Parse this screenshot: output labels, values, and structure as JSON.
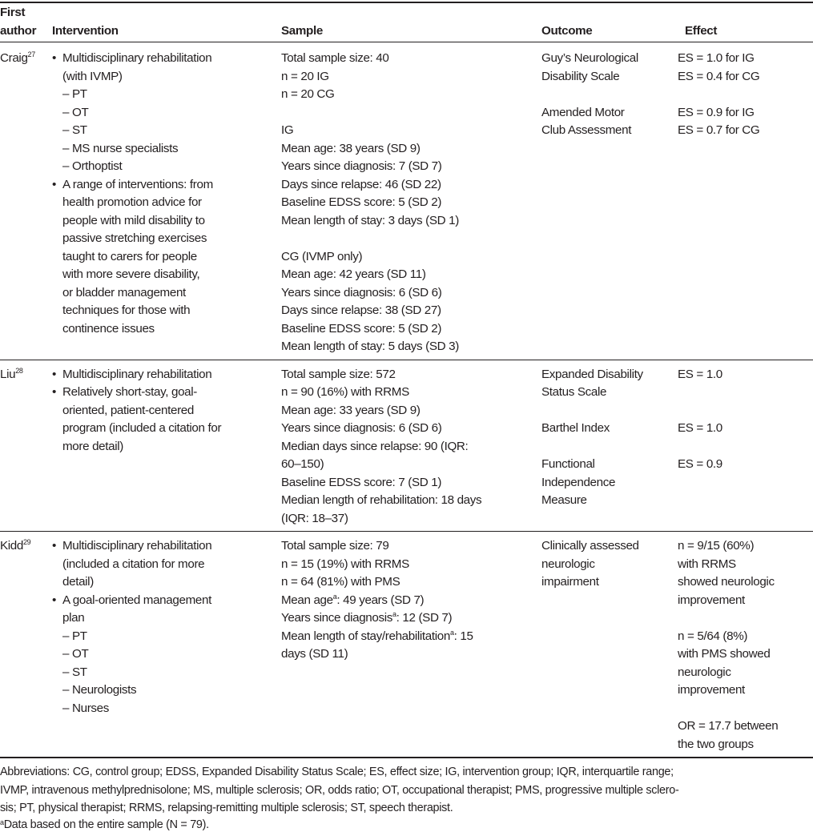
{
  "header": {
    "author_line1": "First",
    "author_line2": "author",
    "intervention": "Intervention",
    "sample": "Sample",
    "outcome": "Outcome",
    "effect": "Effect"
  },
  "rows": [
    {
      "author": "Craig",
      "ref": "27",
      "intervention": [
        {
          "type": "bullet",
          "text": "Multidisciplinary rehabilitation"
        },
        {
          "type": "cont",
          "text": "(with IVMP)"
        },
        {
          "type": "dash",
          "text": "PT"
        },
        {
          "type": "dash",
          "text": "OT"
        },
        {
          "type": "dash",
          "text": "ST"
        },
        {
          "type": "dash",
          "text": "MS nurse specialists"
        },
        {
          "type": "dash",
          "text": "Orthoptist"
        },
        {
          "type": "bullet",
          "text": "A range of interventions: from"
        },
        {
          "type": "cont",
          "text": "health promotion advice for"
        },
        {
          "type": "cont",
          "text": "people with mild disability to"
        },
        {
          "type": "cont",
          "text": "passive stretching exercises"
        },
        {
          "type": "cont",
          "text": "taught to carers for people"
        },
        {
          "type": "cont",
          "text": "with more severe disability,"
        },
        {
          "type": "cont",
          "text": "or bladder management"
        },
        {
          "type": "cont",
          "text": "techniques for those with"
        },
        {
          "type": "cont",
          "text": "continence issues"
        }
      ],
      "sample": [
        {
          "text": "Total sample size: 40"
        },
        {
          "text": "n = 20 IG"
        },
        {
          "text": "n = 20 CG"
        },
        {
          "text": ""
        },
        {
          "text": "IG"
        },
        {
          "text": "Mean age: 38 years (SD 9)"
        },
        {
          "text": "Years since diagnosis: 7 (SD 7)"
        },
        {
          "text": "Days since relapse: 46 (SD 22)"
        },
        {
          "text": "Baseline EDSS score: 5 (SD 2)"
        },
        {
          "text": "Mean length of stay: 3 days (SD 1)"
        },
        {
          "text": ""
        },
        {
          "text": "CG (IVMP only)"
        },
        {
          "text": "Mean age: 42 years (SD 11)"
        },
        {
          "text": "Years since diagnosis: 6 (SD 6)"
        },
        {
          "text": "Days since relapse: 38 (SD 27)"
        },
        {
          "text": "Baseline EDSS score: 5 (SD 2)"
        },
        {
          "text": "Mean length of stay: 5 days (SD 3)"
        }
      ],
      "outcome": [
        {
          "text": "Guy’s Neurological"
        },
        {
          "text": "Disability Scale"
        },
        {
          "text": ""
        },
        {
          "text": "Amended Motor"
        },
        {
          "text": "Club Assessment"
        }
      ],
      "effect": [
        {
          "text": "ES = 1.0 for IG"
        },
        {
          "text": "ES = 0.4 for CG"
        },
        {
          "text": ""
        },
        {
          "text": "ES = 0.9 for IG"
        },
        {
          "text": "ES = 0.7 for CG"
        }
      ]
    },
    {
      "author": "Liu",
      "ref": "28",
      "intervention": [
        {
          "type": "bullet",
          "text": "Multidisciplinary rehabilitation"
        },
        {
          "type": "bullet",
          "text": "Relatively short-stay, goal-"
        },
        {
          "type": "cont",
          "text": "oriented, patient-centered"
        },
        {
          "type": "cont",
          "text": "program (included a citation for"
        },
        {
          "type": "cont",
          "text": "more detail)"
        }
      ],
      "sample": [
        {
          "text": "Total sample size: 572"
        },
        {
          "text": "n = 90 (16%) with RRMS"
        },
        {
          "text": "Mean age: 33 years (SD 9)"
        },
        {
          "text": "Years since diagnosis: 6 (SD 6)"
        },
        {
          "text": "Median days since relapse: 90 (IQR:"
        },
        {
          "text": "60–150)"
        },
        {
          "text": "Baseline EDSS score: 7 (SD 1)"
        },
        {
          "text": "Median length of rehabilitation: 18 days"
        },
        {
          "text": "(IQR: 18–37)"
        }
      ],
      "outcome": [
        {
          "text": "Expanded Disability"
        },
        {
          "text": "Status Scale"
        },
        {
          "text": ""
        },
        {
          "text": "Barthel Index"
        },
        {
          "text": ""
        },
        {
          "text": "Functional"
        },
        {
          "text": "Independence"
        },
        {
          "text": "Measure"
        }
      ],
      "effect": [
        {
          "text": "ES = 1.0"
        },
        {
          "text": ""
        },
        {
          "text": ""
        },
        {
          "text": "ES = 1.0"
        },
        {
          "text": ""
        },
        {
          "text": "ES = 0.9"
        }
      ]
    },
    {
      "author": "Kidd",
      "ref": "29",
      "intervention": [
        {
          "type": "bullet",
          "text": "Multidisciplinary rehabilitation"
        },
        {
          "type": "cont",
          "text": "(included a citation for more"
        },
        {
          "type": "cont",
          "text": "detail)"
        },
        {
          "type": "bullet",
          "text": "A goal-oriented management"
        },
        {
          "type": "cont",
          "text": "plan"
        },
        {
          "type": "dash",
          "text": "PT"
        },
        {
          "type": "dash",
          "text": "OT"
        },
        {
          "type": "dash",
          "text": "ST"
        },
        {
          "type": "dash",
          "text": "Neurologists"
        },
        {
          "type": "dash",
          "text": "Nurses"
        }
      ],
      "sample": [
        {
          "text": "Total sample size: 79"
        },
        {
          "text": "n = 15 (19%) with RRMS"
        },
        {
          "text": "n = 64 (81%) with PMS"
        },
        {
          "text": "Mean age",
          "sup": "a",
          "after": ": 49 years (SD 7)"
        },
        {
          "text": "Years since diagnosis",
          "sup": "a",
          "after": ": 12 (SD 7)"
        },
        {
          "text": "Mean length of stay/rehabilitation",
          "sup": "a",
          "after": ": 15"
        },
        {
          "text": "days (SD 11)"
        }
      ],
      "outcome": [
        {
          "text": "Clinically assessed"
        },
        {
          "text": "neurologic"
        },
        {
          "text": "impairment"
        }
      ],
      "effect": [
        {
          "text": "n = 9/15 (60%)"
        },
        {
          "text": "with RRMS"
        },
        {
          "text": "showed neurologic"
        },
        {
          "text": "improvement"
        },
        {
          "text": ""
        },
        {
          "text": "n = 5/64 (8%)"
        },
        {
          "text": "with PMS showed"
        },
        {
          "text": "neurologic"
        },
        {
          "text": "improvement"
        },
        {
          "text": ""
        },
        {
          "text": "OR = 17.7 between"
        },
        {
          "text": "the two groups"
        }
      ]
    }
  ],
  "footnotes": {
    "abbrev_lines": [
      "Abbreviations: CG, control group; EDSS, Expanded Disability Status Scale; ES, effect size; IG, intervention group; IQR, interquartile range;",
      "IVMP, intravenous methylprednisolone; MS, multiple sclerosis; OR, odds ratio; OT, occupational therapist; PMS, progressive multiple sclero-",
      "sis; PT, physical therapist; RRMS, relapsing-remitting multiple sclerosis; ST, speech therapist."
    ],
    "note_marker": "a",
    "note_text": "Data based on the entire sample (N = 79)."
  }
}
